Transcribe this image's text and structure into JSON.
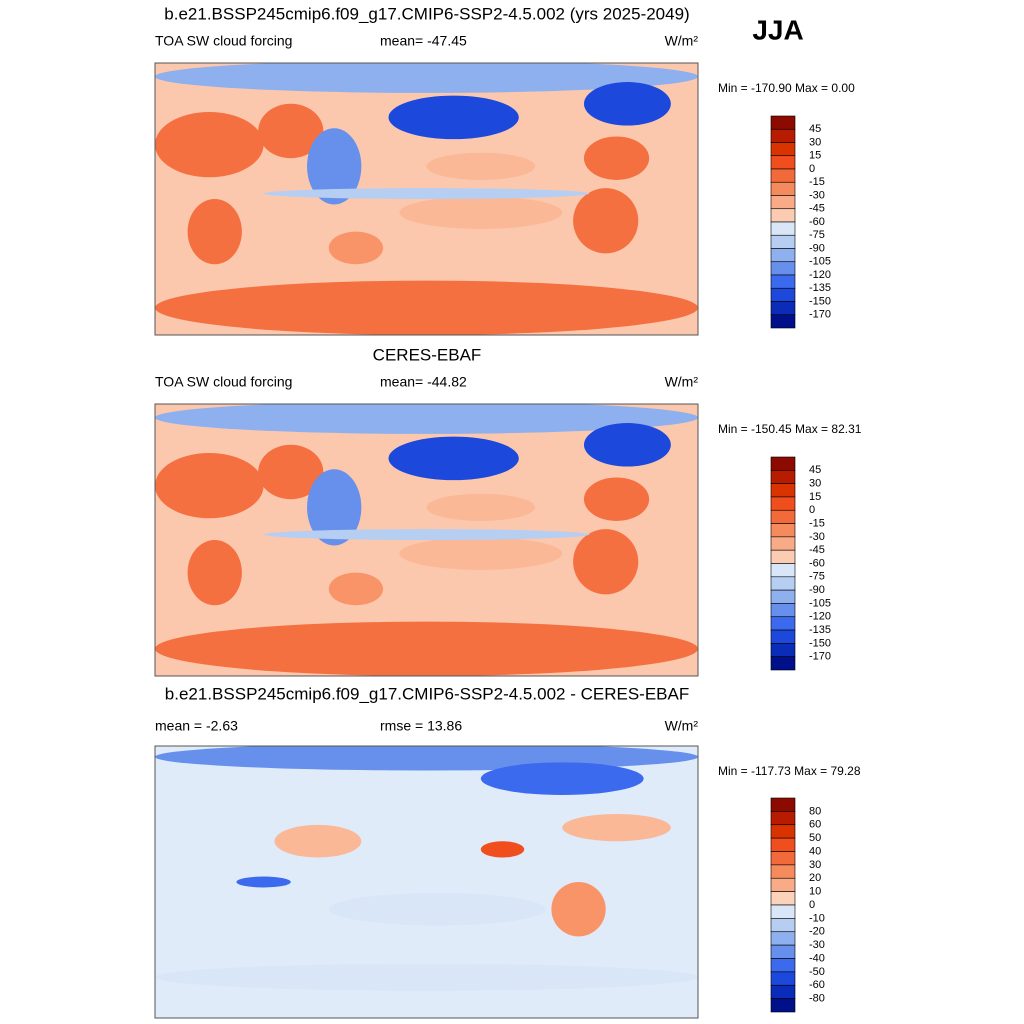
{
  "header": {
    "season": "JJA"
  },
  "panels": [
    {
      "title": "b.e21.BSSP245cmip6.f09_g17.CMIP6-SSP2-4.5.002 (yrs 2025-2049)",
      "left": "TOA SW cloud forcing",
      "center": "mean= -47.45",
      "units": "W/m²",
      "minmax": "Min = -170.90 Max =   0.00",
      "colorbar": [
        "45",
        "30",
        "15",
        "0",
        "-15",
        "-30",
        "-45",
        "-60",
        "-75",
        "-90",
        "-105",
        "-120",
        "-135",
        "-150",
        "-170"
      ]
    },
    {
      "title": "CERES-EBAF",
      "left": "TOA SW cloud forcing",
      "center": "mean= -44.82",
      "units": "W/m²",
      "minmax": "Min = -150.45 Max =  82.31",
      "colorbar": [
        "45",
        "30",
        "15",
        "0",
        "-15",
        "-30",
        "-45",
        "-60",
        "-75",
        "-90",
        "-105",
        "-120",
        "-135",
        "-150",
        "-170"
      ]
    },
    {
      "title": "b.e21.BSSP245cmip6.f09_g17.CMIP6-SSP2-4.5.002 - CERES-EBAF",
      "left": "mean =  -2.63",
      "center": "rmse =  13.86",
      "units": "W/m²",
      "minmax": "Min = -117.73 Max =  79.28",
      "colorbar": [
        "80",
        "60",
        "50",
        "40",
        "30",
        "20",
        "10",
        "0",
        "-10",
        "-20",
        "-30",
        "-40",
        "-50",
        "-60",
        "-80"
      ]
    }
  ]
}
